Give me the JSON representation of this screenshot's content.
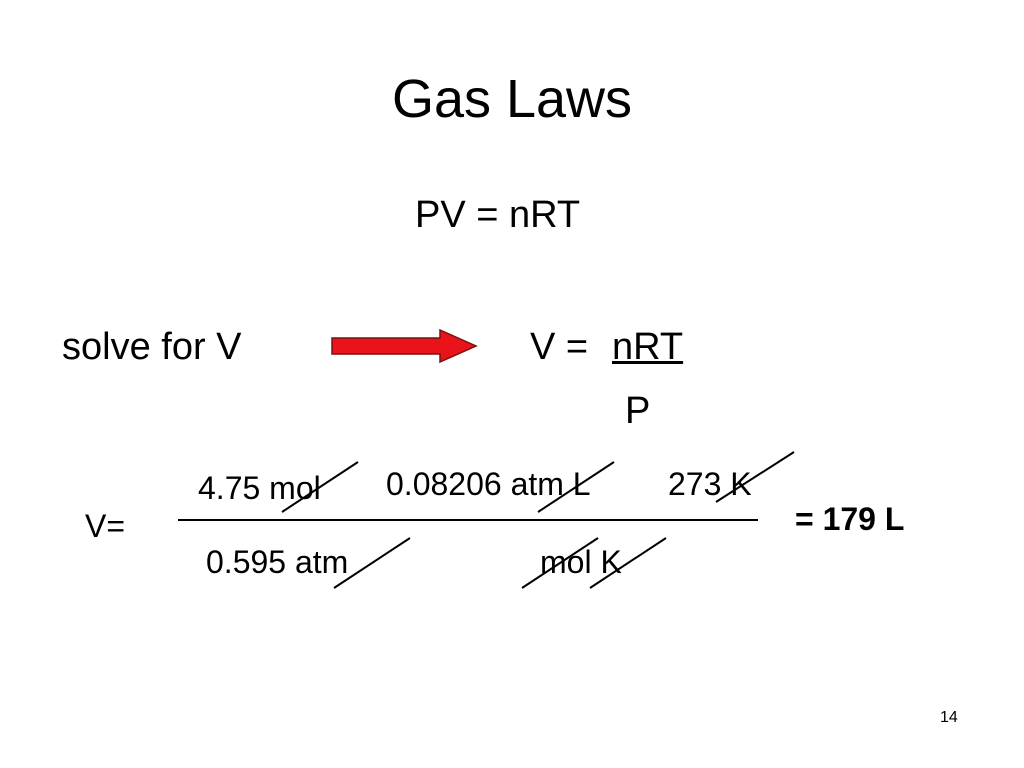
{
  "title": "Gas Laws",
  "equation": "PV = nRT",
  "solve": {
    "label": "solve for V",
    "result_lhs": "V =",
    "result_num": "nRT",
    "result_den": "P"
  },
  "calc": {
    "lhs": "V=",
    "numerator": [
      "4.75 mol",
      "0.08206 atm L",
      "273 K"
    ],
    "denominator": [
      "0.595 atm",
      "mol K"
    ],
    "result": "= 179 L"
  },
  "page_number": "14"
}
